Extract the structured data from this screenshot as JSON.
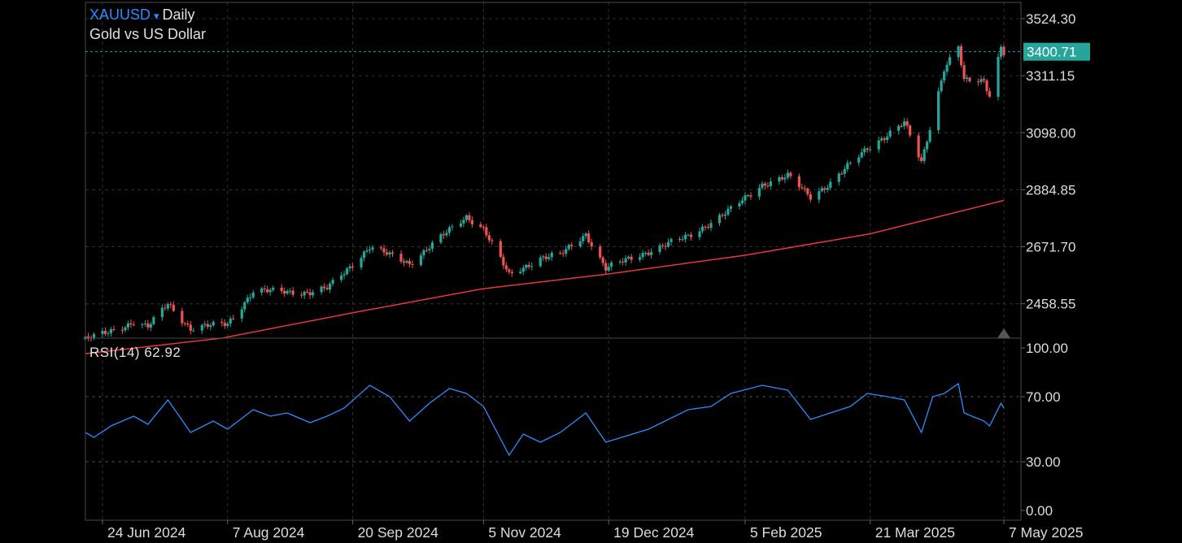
{
  "header": {
    "symbol": "XAUUSD",
    "caret": "▾",
    "interval": "Daily",
    "subtitle": "Gold vs US Dollar"
  },
  "rsi_panel": {
    "label": "RSI(14)",
    "value": "62.92"
  },
  "colors": {
    "background": "#000000",
    "up": "#26a69a",
    "down": "#ef5350",
    "ma": "#e53935",
    "rsi": "#2f8cff",
    "last_price_badge": "#26a69a",
    "grid": "#2e2e2e",
    "symbol_text": "#2f8cff"
  },
  "chart_data": [
    {
      "type": "candlestick",
      "title": "XAUUSD Daily",
      "subtitle": "Gold vs US Dollar",
      "y_ticks": [
        "3524.30",
        "3311.15",
        "3098.00",
        "2884.85",
        "2671.70",
        "2458.55"
      ],
      "x_ticks": [
        "24 Jun 2024",
        "7 Aug 2024",
        "20 Sep 2024",
        "5 Nov 2024",
        "19 Dec 2024",
        "5 Feb 2025",
        "21 Mar 2025",
        "7 May 2025"
      ],
      "last_price": "3400.71",
      "y_range": [
        2330,
        3585
      ],
      "x_range": [
        "2024-06-18",
        "2025-05-13"
      ],
      "close_anchors": [
        [
          "2024-06-18",
          2325
        ],
        [
          "2024-06-24",
          2345
        ],
        [
          "2024-07-05",
          2390
        ],
        [
          "2024-07-10",
          2370
        ],
        [
          "2024-07-17",
          2460
        ],
        [
          "2024-07-25",
          2365
        ],
        [
          "2024-08-07",
          2385
        ],
        [
          "2024-08-16",
          2505
        ],
        [
          "2024-08-28",
          2505
        ],
        [
          "2024-09-05",
          2500
        ],
        [
          "2024-09-11",
          2515
        ],
        [
          "2024-09-26",
          2670
        ],
        [
          "2024-10-10",
          2610
        ],
        [
          "2024-10-30",
          2785
        ],
        [
          "2024-11-05",
          2740
        ],
        [
          "2024-11-14",
          2565
        ],
        [
          "2024-11-25",
          2630
        ],
        [
          "2024-12-02",
          2640
        ],
        [
          "2024-12-11",
          2720
        ],
        [
          "2024-12-18",
          2590
        ],
        [
          "2025-01-02",
          2655
        ],
        [
          "2025-01-16",
          2710
        ],
        [
          "2025-01-31",
          2810
        ],
        [
          "2025-02-11",
          2905
        ],
        [
          "2025-02-20",
          2935
        ],
        [
          "2025-02-28",
          2860
        ],
        [
          "2025-03-07",
          2910
        ],
        [
          "2025-03-20",
          3040
        ],
        [
          "2025-04-02",
          3135
        ],
        [
          "2025-04-08",
          2985
        ],
        [
          "2025-04-16",
          3340
        ],
        [
          "2025-04-21",
          3420
        ],
        [
          "2025-04-23",
          3290
        ],
        [
          "2025-04-30",
          3290
        ],
        [
          "2025-05-02",
          3240
        ],
        [
          "2025-05-06",
          3425
        ],
        [
          "2025-05-07",
          3400.71
        ]
      ],
      "moving_average": {
        "points": [
          [
            "2024-06-18",
            2272
          ],
          [
            "2024-08-05",
            2330
          ],
          [
            "2024-09-20",
            2425
          ],
          [
            "2024-11-05",
            2515
          ],
          [
            "2024-12-19",
            2570
          ],
          [
            "2025-02-05",
            2640
          ],
          [
            "2025-03-21",
            2720
          ],
          [
            "2025-05-07",
            2845
          ]
        ]
      }
    },
    {
      "type": "line",
      "title": "RSI(14)",
      "series": [
        {
          "name": "RSI(14)",
          "last_value": 62.92,
          "points": [
            [
              "2024-06-18",
              48
            ],
            [
              "2024-06-21",
              45
            ],
            [
              "2024-06-27",
              52
            ],
            [
              "2024-07-05",
              58
            ],
            [
              "2024-07-10",
              53
            ],
            [
              "2024-07-17",
              68
            ],
            [
              "2024-07-25",
              48
            ],
            [
              "2024-08-02",
              55
            ],
            [
              "2024-08-07",
              50
            ],
            [
              "2024-08-16",
              62
            ],
            [
              "2024-08-22",
              58
            ],
            [
              "2024-08-28",
              60
            ],
            [
              "2024-09-05",
              54
            ],
            [
              "2024-09-11",
              58
            ],
            [
              "2024-09-17",
              63
            ],
            [
              "2024-09-26",
              77
            ],
            [
              "2024-10-03",
              70
            ],
            [
              "2024-10-10",
              55
            ],
            [
              "2024-10-17",
              66
            ],
            [
              "2024-10-24",
              75
            ],
            [
              "2024-10-30",
              72
            ],
            [
              "2024-11-05",
              64
            ],
            [
              "2024-11-14",
              34
            ],
            [
              "2024-11-19",
              47
            ],
            [
              "2024-11-25",
              42
            ],
            [
              "2024-12-02",
              48
            ],
            [
              "2024-12-11",
              60
            ],
            [
              "2024-12-18",
              42
            ],
            [
              "2025-01-02",
              50
            ],
            [
              "2025-01-16",
              62
            ],
            [
              "2025-01-24",
              64
            ],
            [
              "2025-01-31",
              72
            ],
            [
              "2025-02-11",
              77
            ],
            [
              "2025-02-20",
              74
            ],
            [
              "2025-02-28",
              56
            ],
            [
              "2025-03-07",
              60
            ],
            [
              "2025-03-14",
              64
            ],
            [
              "2025-03-20",
              72
            ],
            [
              "2025-03-27",
              70
            ],
            [
              "2025-04-02",
              68
            ],
            [
              "2025-04-08",
              48
            ],
            [
              "2025-04-12",
              70
            ],
            [
              "2025-04-16",
              72
            ],
            [
              "2025-04-21",
              78
            ],
            [
              "2025-04-23",
              60
            ],
            [
              "2025-04-30",
              55
            ],
            [
              "2025-05-02",
              52
            ],
            [
              "2025-05-06",
              66
            ],
            [
              "2025-05-07",
              62.92
            ]
          ]
        }
      ],
      "y_ticks": [
        "100.00",
        "70.00",
        "30.00",
        "0.00"
      ],
      "y_range": [
        0,
        100
      ]
    }
  ]
}
